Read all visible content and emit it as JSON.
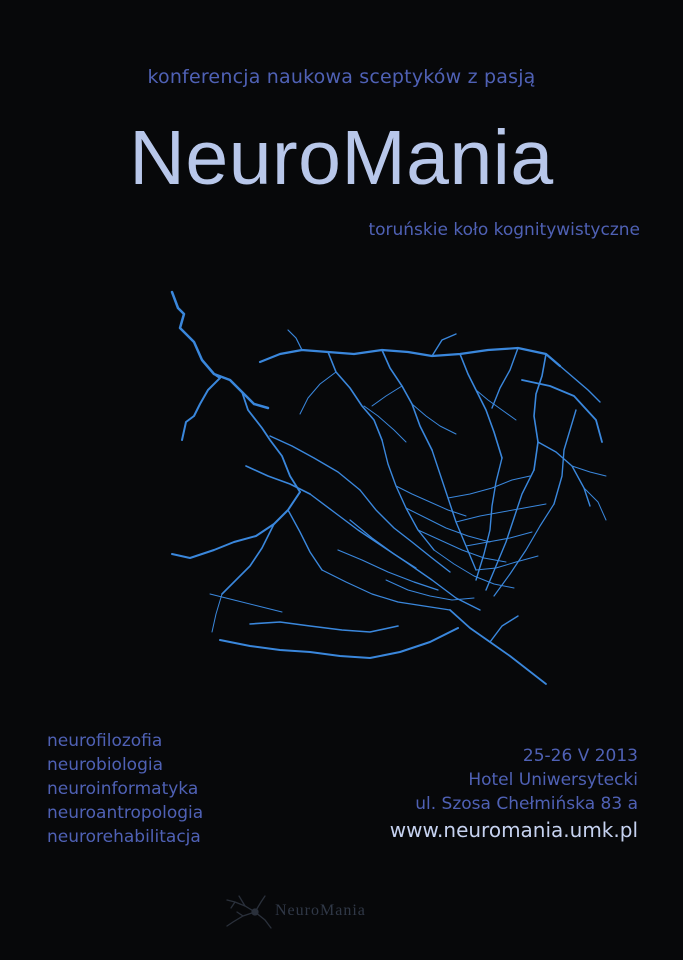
{
  "header": {
    "subtitle": "konferencja naukowa sceptyków z pasją",
    "title": "NeuroMania",
    "organizer": "toruńskie koło kognitywistyczne"
  },
  "topics": [
    "neurofilozofia",
    "neurobiologia",
    "neuroinformatyka",
    "neuroantropologia",
    "neurorehabilitacja"
  ],
  "details": {
    "date": "25-26 V 2013",
    "venue": "Hotel Uniwersytecki",
    "address": "ul. Szosa Chełmińska 83 a",
    "website": "www.neuromania.umk.pl"
  },
  "footer": {
    "logo_text": "NeuroMania"
  },
  "colors": {
    "background": "#07080a",
    "accent_blue": "#4f61b5",
    "title_light": "#b8c7ea",
    "neuron_blue": "#3d8ee8"
  },
  "icons": {
    "neuron": "neuron-illustration",
    "footer": "neuron-logo-icon"
  }
}
